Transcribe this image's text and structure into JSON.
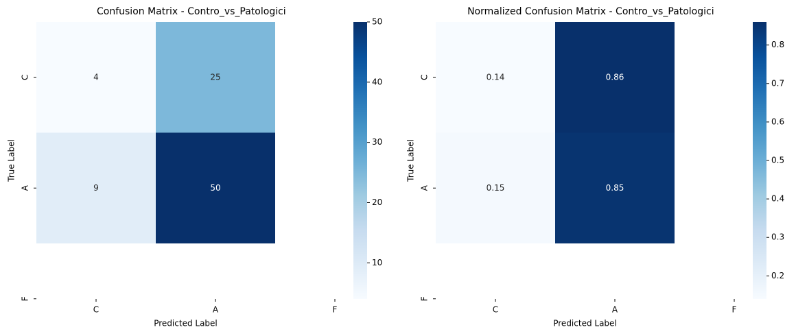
{
  "chart_data": [
    {
      "type": "heatmap",
      "title": "Confusion Matrix - Contro_vs_Patologici",
      "xlabel": "Predicted Label",
      "ylabel": "True Label",
      "x": [
        "C",
        "A",
        "F"
      ],
      "y": [
        "C",
        "A",
        "F"
      ],
      "values": [
        [
          4,
          25,
          null
        ],
        [
          9,
          50,
          null
        ],
        [
          null,
          null,
          null
        ]
      ],
      "clim": [
        4,
        50
      ],
      "cticks": [
        10,
        20,
        30,
        40,
        50
      ],
      "colormap": [
        "#f7fbff",
        "#deebf7",
        "#c6dbef",
        "#9ecae1",
        "#6baed6",
        "#4292c6",
        "#2171b5",
        "#08519c",
        "#08306b"
      ]
    },
    {
      "type": "heatmap",
      "title": "Normalized Confusion Matrix - Contro_vs_Patologici",
      "xlabel": "Predicted Label",
      "ylabel": "True Label",
      "x": [
        "C",
        "A",
        "F"
      ],
      "y": [
        "C",
        "A",
        "F"
      ],
      "values": [
        [
          0.14,
          0.86,
          null
        ],
        [
          0.15,
          0.85,
          null
        ],
        [
          null,
          null,
          null
        ]
      ],
      "clim": [
        0.14,
        0.86
      ],
      "cticks": [
        0.2,
        0.3,
        0.4,
        0.5,
        0.6,
        0.7,
        0.8
      ],
      "colormap": [
        "#f7fbff",
        "#deebf7",
        "#c6dbef",
        "#9ecae1",
        "#6baed6",
        "#4292c6",
        "#2171b5",
        "#08519c",
        "#08306b"
      ]
    }
  ]
}
